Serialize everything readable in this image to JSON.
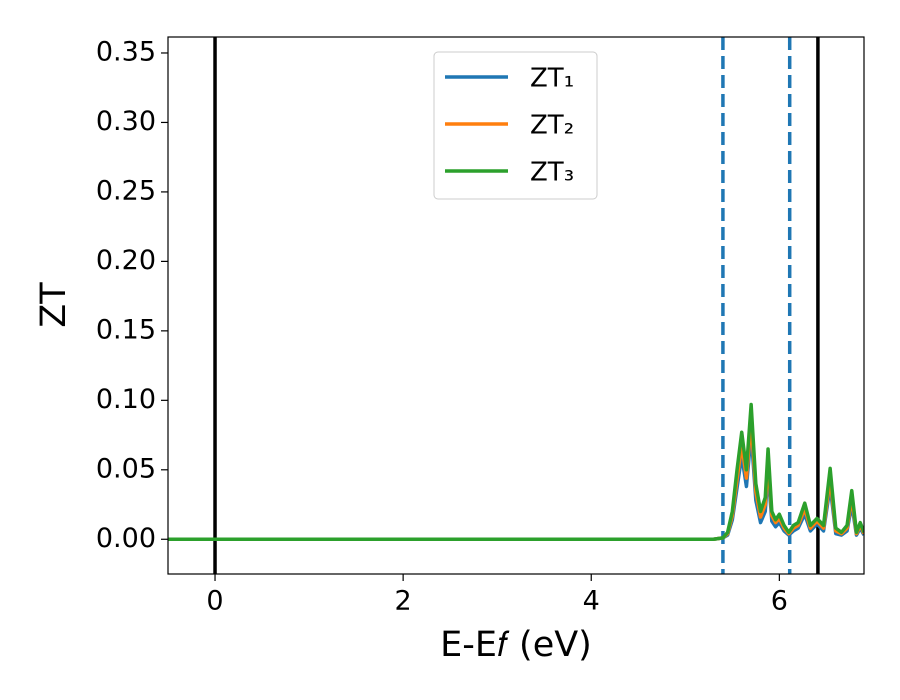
{
  "chart_data": {
    "type": "line",
    "x_label": "E-E𝑓 (eV)",
    "y_label": "ZT",
    "xlim": [
      -0.5,
      6.9
    ],
    "ylim": [
      -0.025,
      0.3615
    ],
    "xticks": [
      0,
      2,
      4,
      6
    ],
    "yticks": [
      {
        "value": 0,
        "label": "0.00"
      },
      {
        "value": 0.05,
        "label": "0.05"
      },
      {
        "value": 0.1,
        "label": "0.10"
      },
      {
        "value": 0.15,
        "label": "0.15"
      },
      {
        "value": 0.2,
        "label": "0.20"
      },
      {
        "value": 0.25,
        "label": "0.25"
      },
      {
        "value": 0.3,
        "label": "0.30"
      },
      {
        "value": 0.35,
        "label": "0.35"
      }
    ],
    "grid": false,
    "legend": "upper center",
    "x": [
      -0.5,
      5.3,
      5.4,
      5.45,
      5.5,
      5.55,
      5.6,
      5.65,
      5.7,
      5.75,
      5.8,
      5.85,
      5.88,
      5.92,
      5.96,
      6.0,
      6.05,
      6.1,
      6.15,
      6.2,
      6.27,
      6.33,
      6.4,
      6.47,
      6.54,
      6.6,
      6.66,
      6.72,
      6.77,
      6.82,
      6.86,
      6.9
    ],
    "series": [
      {
        "name": "ZT₁",
        "color": "#1f77b4",
        "values": [
          0,
          0,
          0.001,
          0.003,
          0.014,
          0.037,
          0.06,
          0.038,
          0.076,
          0.028,
          0.012,
          0.02,
          0.048,
          0.013,
          0.009,
          0.012,
          0.006,
          0.003,
          0.006,
          0.008,
          0.018,
          0.006,
          0.011,
          0.006,
          0.038,
          0.004,
          0.003,
          0.006,
          0.025,
          0.003,
          0.008,
          0.003
        ]
      },
      {
        "name": "ZT₂",
        "color": "#ff7f0e",
        "values": [
          0,
          0,
          0.001,
          0.004,
          0.017,
          0.043,
          0.068,
          0.044,
          0.086,
          0.034,
          0.016,
          0.025,
          0.056,
          0.017,
          0.012,
          0.015,
          0.008,
          0.004,
          0.008,
          0.01,
          0.022,
          0.008,
          0.013,
          0.008,
          0.044,
          0.006,
          0.004,
          0.008,
          0.03,
          0.004,
          0.01,
          0.004
        ]
      },
      {
        "name": "ZT₃",
        "color": "#2ca02c",
        "values": [
          0,
          0,
          0.001,
          0.005,
          0.02,
          0.05,
          0.077,
          0.05,
          0.097,
          0.04,
          0.02,
          0.03,
          0.065,
          0.02,
          0.014,
          0.018,
          0.01,
          0.005,
          0.01,
          0.012,
          0.026,
          0.01,
          0.015,
          0.01,
          0.051,
          0.008,
          0.005,
          0.01,
          0.035,
          0.005,
          0.012,
          0.005
        ]
      }
    ],
    "vlines": [
      {
        "x": 0,
        "color": "#000000",
        "style": "solid"
      },
      {
        "x": 6.41,
        "color": "#000000",
        "style": "solid"
      },
      {
        "x": 5.4,
        "color": "#1f77b4",
        "style": "dashed"
      },
      {
        "x": 6.11,
        "color": "#1f77b4",
        "style": "dashed"
      }
    ]
  }
}
